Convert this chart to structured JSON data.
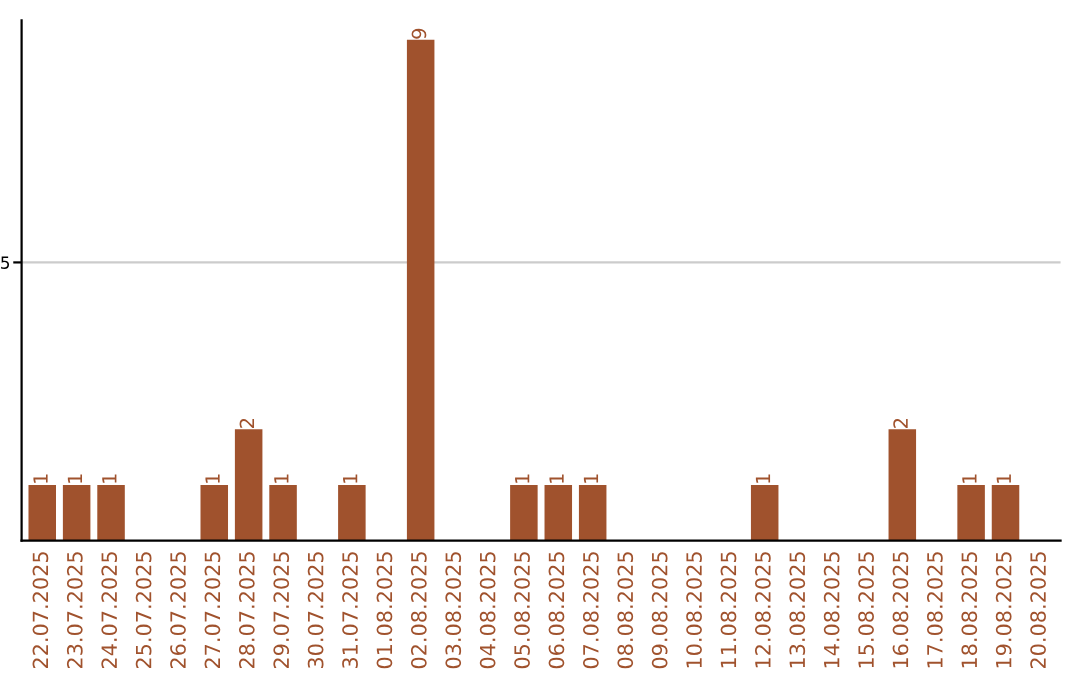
{
  "chart_data": {
    "type": "bar",
    "categories": [
      "22.07.2025",
      "23.07.2025",
      "24.07.2025",
      "25.07.2025",
      "26.07.2025",
      "27.07.2025",
      "28.07.2025",
      "29.07.2025",
      "30.07.2025",
      "31.07.2025",
      "01.08.2025",
      "02.08.2025",
      "03.08.2025",
      "04.08.2025",
      "05.08.2025",
      "06.08.2025",
      "07.08.2025",
      "08.08.2025",
      "09.08.2025",
      "10.08.2025",
      "11.08.2025",
      "12.08.2025",
      "13.08.2025",
      "14.08.2025",
      "15.08.2025",
      "16.08.2025",
      "17.08.2025",
      "18.08.2025",
      "19.08.2025",
      "20.08.2025"
    ],
    "values": [
      1,
      1,
      1,
      0,
      0,
      1,
      2,
      1,
      0,
      1,
      0,
      9,
      0,
      0,
      1,
      1,
      1,
      0,
      0,
      0,
      0,
      1,
      0,
      0,
      0,
      2,
      0,
      1,
      1,
      0
    ],
    "value_labels": [
      "1",
      "1",
      "1",
      null,
      null,
      "1",
      "2",
      "1",
      null,
      "1",
      null,
      "9",
      null,
      null,
      "1",
      "1",
      "1",
      null,
      null,
      null,
      null,
      "1",
      null,
      null,
      null,
      "2",
      null,
      "1",
      "1",
      null
    ],
    "color": "#a0522d",
    "ylim": [
      0,
      9.35
    ],
    "yticks": [
      5
    ],
    "grid": "y",
    "legend": false
  }
}
